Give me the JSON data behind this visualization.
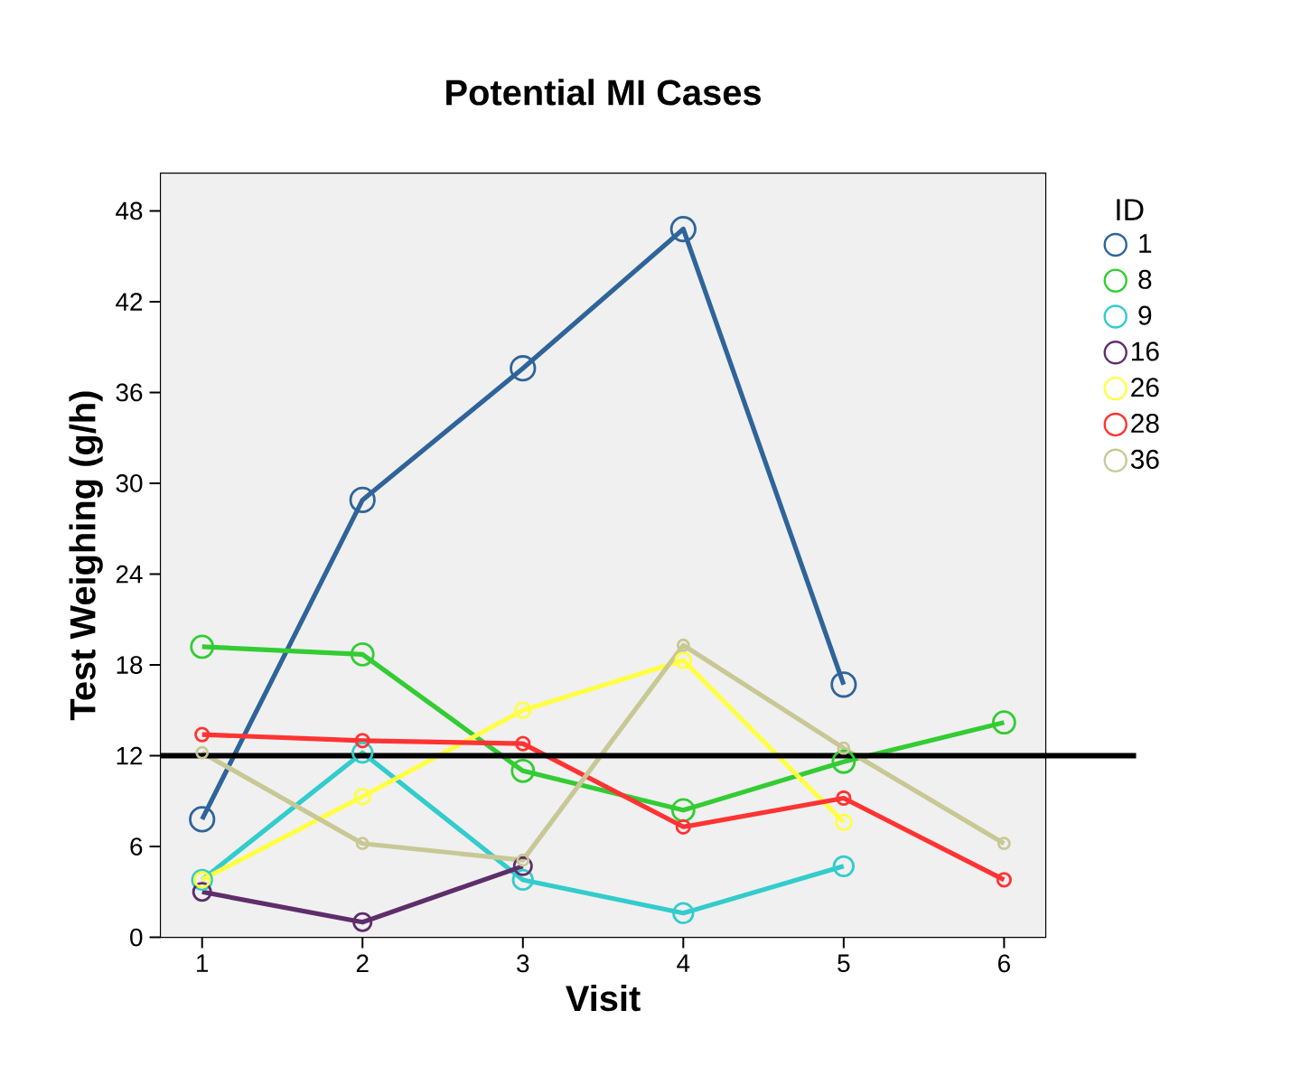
{
  "chart_data": {
    "type": "line",
    "title": "Potential MI Cases",
    "xlabel": "Visit",
    "ylabel": "Test Weighing (g/h)",
    "legend_title": "ID",
    "x": [
      1,
      2,
      3,
      4,
      5,
      6
    ],
    "xlim": [
      0.74,
      6.26
    ],
    "xticks": [
      1,
      2,
      3,
      4,
      5,
      6
    ],
    "ylim": [
      0,
      50.5
    ],
    "yticks": [
      0,
      6,
      12,
      18,
      24,
      30,
      36,
      42,
      48
    ],
    "marker": "circle",
    "legend": "right",
    "grid": false,
    "ref_lines": [
      {
        "axis": "y",
        "value": 12,
        "color": "#000000"
      }
    ],
    "series": [
      {
        "name": "1",
        "color": "#2e6499",
        "values": [
          7.8,
          28.9,
          37.6,
          46.8,
          16.7,
          null
        ]
      },
      {
        "name": "8",
        "color": "#33cc33",
        "values": [
          19.2,
          18.7,
          11.0,
          8.4,
          11.6,
          14.2
        ]
      },
      {
        "name": "9",
        "color": "#33cccc",
        "values": [
          3.8,
          12.2,
          3.8,
          1.6,
          4.7,
          null
        ]
      },
      {
        "name": "16",
        "color": "#5e2e6b",
        "values": [
          3.0,
          1.0,
          4.7,
          null,
          null,
          null
        ]
      },
      {
        "name": "26",
        "color": "#ffff44",
        "values": [
          3.8,
          9.3,
          15.0,
          18.3,
          7.6,
          null
        ]
      },
      {
        "name": "28",
        "color": "#ff3333",
        "values": [
          13.4,
          13.0,
          12.8,
          7.3,
          9.2,
          3.8
        ]
      },
      {
        "name": "36",
        "color": "#c8c896",
        "values": [
          12.2,
          6.2,
          5.1,
          19.3,
          12.5,
          6.2
        ]
      }
    ]
  }
}
